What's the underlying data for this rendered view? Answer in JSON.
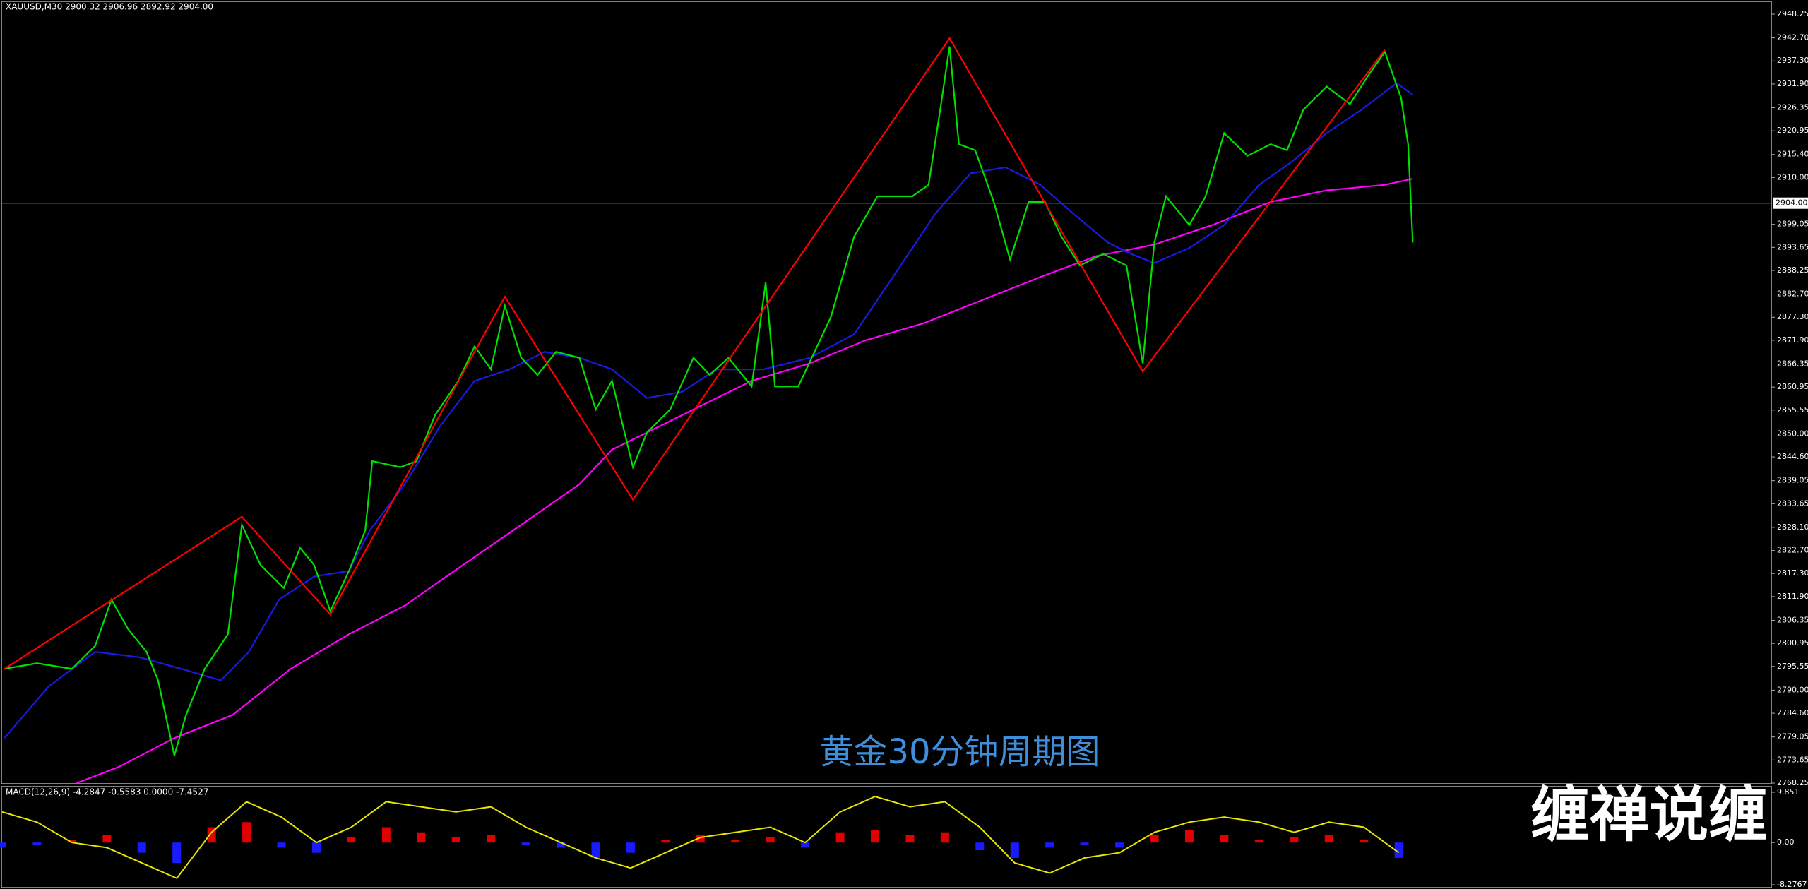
{
  "watermark": "缠禅说缠",
  "chart_data": [
    {
      "type": "line",
      "title": "XAUUSD,M30  2900.32 2906.96 2892.92 2904.00",
      "annotation": "黄金30分钟周期图",
      "xlim": [
        0,
        760
      ],
      "ylim": [
        2768.25,
        2948.25
      ],
      "yticks": [
        2948.25,
        {
          "value": 2942.7,
          "label": "2942.70"
        },
        {
          "value": 2937.3,
          "label": "2937.30"
        },
        {
          "value": 2931.9,
          "label": "2931.90"
        },
        2926.35,
        2920.95,
        {
          "value": 2915.4,
          "label": "2915.40"
        },
        {
          "value": 2910,
          "label": "2910.00"
        },
        2899.05,
        2893.65,
        2888.25,
        {
          "value": 2882.7,
          "label": "2882.70"
        },
        {
          "value": 2877.3,
          "label": "2877.30"
        },
        {
          "value": 2871.9,
          "label": "2871.90"
        },
        2866.35,
        2860.95,
        2855.55,
        {
          "value": 2850,
          "label": "2850.00"
        },
        {
          "value": 2844.6,
          "label": "2844.60"
        },
        2839.05,
        2833.65,
        {
          "value": 2828.1,
          "label": "2828.10"
        },
        {
          "value": 2822.7,
          "label": "2822.70"
        },
        {
          "value": 2817.3,
          "label": "2817.30"
        },
        {
          "value": 2811.9,
          "label": "2811.90"
        },
        2806.35,
        2800.95,
        2795.55,
        {
          "value": 2790,
          "label": "2790.00"
        },
        {
          "value": 2784.6,
          "label": "2784.60"
        },
        2779.05,
        2773.65,
        2768.25
      ],
      "price_line": {
        "value": 2904,
        "label": "2904.00"
      },
      "series": [
        {
          "color": "#ff00ff",
          "x": [
            32,
            50,
            74,
            99,
            124,
            149,
            173,
            198,
            223,
            248,
            262,
            277,
            297,
            322,
            347,
            371,
            396,
            421,
            446,
            470,
            495,
            520,
            545,
            569,
            594,
            606
          ],
          "values": [
            2768.25,
            2772.0,
            2778.8,
            2784.2,
            2795.0,
            2803.1,
            2809.8,
            2819.3,
            2828.7,
            2838.2,
            2846.3,
            2850.3,
            2855.7,
            2862.4,
            2866.5,
            2871.9,
            2875.9,
            2881.3,
            2886.7,
            2891.6,
            2894.3,
            2898.9,
            2904.3,
            2907.0,
            2908.3,
            2909.7
          ]
        },
        {
          "color": "#1a1ae0",
          "x": [
            1,
            20,
            40,
            59,
            77,
            94,
            106,
            119,
            134,
            149,
            158,
            173,
            188,
            203,
            218,
            233,
            248,
            262,
            277,
            292,
            307,
            327,
            347,
            366,
            386,
            401,
            416,
            431,
            446,
            460,
            475,
            485,
            495,
            510,
            525,
            540,
            554,
            569,
            584,
            599,
            606
          ],
          "values": [
            2778.8,
            2790.9,
            2799.0,
            2797.7,
            2795.0,
            2792.3,
            2799.0,
            2811.2,
            2816.6,
            2817.9,
            2827.4,
            2838.2,
            2851.7,
            2862.4,
            2865.1,
            2869.2,
            2867.8,
            2865.1,
            2858.4,
            2859.8,
            2865.1,
            2865.1,
            2867.8,
            2873.3,
            2889.4,
            2901.6,
            2911.0,
            2912.4,
            2908.3,
            2901.6,
            2894.8,
            2892.1,
            2890.0,
            2893.5,
            2898.9,
            2908.3,
            2913.7,
            2920.4,
            2925.9,
            2932.1,
            2929.4
          ]
        },
        {
          "color": "#00e000",
          "x": [
            1,
            15,
            30,
            40,
            47,
            54,
            62,
            67,
            74,
            79,
            87,
            97,
            103,
            111,
            121,
            128,
            134,
            141,
            149,
            156,
            159,
            171,
            178,
            186,
            196,
            203,
            210,
            216,
            223,
            230,
            238,
            248,
            255,
            262,
            271,
            277,
            287,
            297,
            304,
            312,
            322,
            328,
            332,
            342,
            349,
            356,
            366,
            376,
            391,
            398,
            403,
            407,
            411,
            418,
            426,
            433,
            441,
            448,
            455,
            463,
            473,
            483,
            490,
            495,
            500,
            510,
            517,
            525,
            535,
            545,
            552,
            559,
            569,
            579,
            587,
            594,
            601,
            604,
            606
          ],
          "values": [
            2795.0,
            2796.3,
            2795.0,
            2800.4,
            2811.2,
            2804.4,
            2799.0,
            2792.3,
            2774.7,
            2784.2,
            2795.0,
            2803.1,
            2828.7,
            2819.3,
            2813.9,
            2823.3,
            2819.3,
            2808.5,
            2817.9,
            2827.4,
            2843.6,
            2842.2,
            2843.6,
            2854.4,
            2862.4,
            2870.5,
            2865.1,
            2880.0,
            2867.8,
            2863.8,
            2869.2,
            2867.8,
            2855.7,
            2862.4,
            2842.2,
            2850.3,
            2855.7,
            2867.8,
            2863.8,
            2867.8,
            2861.1,
            2885.4,
            2861.1,
            2861.1,
            2869.2,
            2877.3,
            2896.2,
            2905.6,
            2905.6,
            2908.3,
            2925.9,
            2940.7,
            2917.8,
            2916.4,
            2904.3,
            2890.8,
            2904.3,
            2904.3,
            2896.2,
            2889.4,
            2892.1,
            2889.4,
            2866.5,
            2894.8,
            2905.6,
            2898.9,
            2905.6,
            2920.4,
            2915.1,
            2917.8,
            2916.4,
            2925.9,
            2931.3,
            2927.2,
            2934.0,
            2939.4,
            2928.6,
            2917.8,
            2894.8
          ]
        },
        {
          "color": "#ff0000",
          "x": [
            1,
            103,
            141,
            216,
            271,
            407,
            490,
            594
          ],
          "values": [
            2795.0,
            2830.6,
            2807.7,
            2882.1,
            2834.6,
            2942.6,
            2864.6,
            2939.9
          ]
        }
      ]
    },
    {
      "type": "bar",
      "title": "MACD(12,26,9) -4.2847 -0.5583 0.0000 -7.4527",
      "xlim": [
        0,
        760
      ],
      "ylim": [
        -8.2767,
        9.851
      ],
      "yticks": [
        9.851,
        {
          "value": 0,
          "label": "0.00"
        },
        -8.2767
      ],
      "positive_color": "#e00000",
      "negative_color": "#1a1aff",
      "line_color": "#e6e600",
      "x": [
        0,
        15,
        30,
        45,
        60,
        75,
        90,
        105,
        120,
        135,
        150,
        165,
        180,
        195,
        210,
        225,
        240,
        255,
        270,
        285,
        300,
        315,
        330,
        345,
        360,
        375,
        390,
        405,
        420,
        435,
        450,
        465,
        480,
        495,
        510,
        525,
        540,
        555,
        570,
        585,
        600
      ],
      "values": [
        -1.0,
        -0.5,
        0.5,
        1.5,
        -2,
        -4,
        3,
        4,
        -1,
        -2,
        1,
        3,
        2,
        1,
        1.5,
        -0.5,
        -1,
        -3,
        -2,
        0.5,
        1.5,
        0.5,
        1.0,
        -1,
        2,
        2.5,
        1.5,
        2,
        -1.5,
        -3,
        -1,
        -0.5,
        -1,
        1.5,
        2.5,
        1.5,
        0.5,
        1,
        1.5,
        0.5,
        -3
      ],
      "line": [
        6,
        4,
        0,
        -1,
        -4,
        -7,
        2,
        8,
        5,
        0,
        3,
        8,
        7,
        6,
        7,
        3,
        0,
        -3,
        -5,
        -2,
        1,
        2,
        3,
        0,
        6,
        9,
        7,
        8,
        3,
        -4,
        -6,
        -3,
        -2,
        2,
        4,
        5,
        4,
        2,
        4,
        3,
        -2
      ]
    }
  ]
}
